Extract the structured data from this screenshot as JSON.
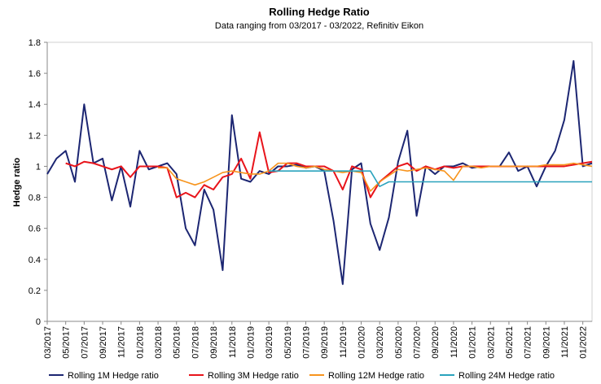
{
  "chart_data": {
    "type": "line",
    "title": "Rolling Hedge Ratio",
    "subtitle": "Data ranging from 03/2017 - 03/2022, Refinitiv Eikon",
    "y_label": "Hedge ratio",
    "categories": [
      "03/2017",
      null,
      "05/2017",
      null,
      "07/2017",
      null,
      "09/2017",
      null,
      "11/2017",
      null,
      "01/2018",
      null,
      "03/2018",
      null,
      "05/2018",
      null,
      "07/2018",
      null,
      "09/2018",
      null,
      "11/2018",
      null,
      "01/2019",
      null,
      "03/2019",
      null,
      "05/2019",
      null,
      "07/2019",
      null,
      "09/2019",
      null,
      "11/2019",
      null,
      "01/2020",
      null,
      "03/2020",
      null,
      "05/2020",
      null,
      "07/2020",
      null,
      "09/2020",
      null,
      "11/2020",
      null,
      "01/2021",
      null,
      "03/2021",
      null,
      "05/2021",
      null,
      "07/2021",
      null,
      "09/2021",
      null,
      "11/2021",
      null,
      "01/2022",
      null
    ],
    "series": [
      {
        "name": "Rolling 1M Hedge ratio",
        "color": "#1c2672",
        "values": [
          0.95,
          1.05,
          1.1,
          0.9,
          1.4,
          1.02,
          1.05,
          0.78,
          1.0,
          0.74,
          1.1,
          0.98,
          1.0,
          1.02,
          0.95,
          0.6,
          0.49,
          0.85,
          0.72,
          0.33,
          1.33,
          0.92,
          0.9,
          0.97,
          0.95,
          1.0,
          1.0,
          1.01,
          0.99,
          1.0,
          0.97,
          0.65,
          0.24,
          0.98,
          1.02,
          0.63,
          0.46,
          0.67,
          1.03,
          1.23,
          0.68,
          1.0,
          0.95,
          1.0,
          1.0,
          1.02,
          0.99,
          1.0,
          1.0,
          1.0,
          1.09,
          0.97,
          1.0,
          0.87,
          1.0,
          1.1,
          1.3,
          1.68,
          1.0,
          1.02
        ]
      },
      {
        "name": "Rolling 3M Hedge ratio",
        "color": "#e8141b",
        "values": [
          null,
          null,
          1.02,
          1.0,
          1.03,
          1.02,
          1.0,
          0.98,
          1.0,
          0.93,
          1.0,
          1.0,
          1.0,
          0.99,
          0.8,
          0.83,
          0.8,
          0.88,
          0.85,
          0.93,
          0.95,
          1.05,
          0.92,
          1.22,
          0.96,
          0.97,
          1.02,
          1.02,
          1.0,
          1.0,
          1.0,
          0.97,
          0.85,
          1.0,
          0.98,
          0.8,
          0.9,
          0.95,
          1.0,
          1.02,
          0.97,
          1.0,
          0.98,
          1.0,
          0.99,
          1.0,
          1.0,
          1.0,
          1.0,
          1.0,
          1.0,
          1.0,
          1.0,
          1.0,
          1.0,
          1.0,
          1.0,
          1.01,
          1.02,
          1.03
        ]
      },
      {
        "name": "Rolling 12M Hedge ratio",
        "color": "#f7941d",
        "values": [
          null,
          null,
          null,
          null,
          null,
          null,
          null,
          null,
          null,
          null,
          null,
          null,
          0.99,
          0.99,
          0.92,
          0.9,
          0.88,
          0.9,
          0.93,
          0.96,
          0.97,
          0.96,
          0.95,
          0.95,
          0.97,
          1.02,
          1.02,
          1.0,
          0.99,
          1.0,
          0.98,
          0.97,
          0.96,
          0.97,
          0.96,
          0.84,
          0.9,
          0.94,
          0.98,
          0.97,
          0.98,
          0.99,
          0.98,
          0.97,
          0.91,
          1.0,
          1.0,
          0.99,
          1.0,
          1.0,
          1.0,
          1.0,
          1.0,
          1.0,
          1.01,
          1.01,
          1.01,
          1.02,
          1.01,
          1.0
        ]
      },
      {
        "name": "Rolling 24M Hedge ratio",
        "color": "#2aa3bd",
        "values": [
          null,
          null,
          null,
          null,
          null,
          null,
          null,
          null,
          null,
          null,
          null,
          null,
          null,
          null,
          null,
          null,
          null,
          null,
          null,
          null,
          null,
          null,
          null,
          null,
          0.97,
          0.97,
          0.97,
          0.97,
          0.97,
          0.97,
          0.97,
          0.97,
          0.97,
          0.97,
          0.97,
          0.97,
          0.87,
          0.9,
          0.9,
          0.9,
          0.9,
          0.9,
          0.9,
          0.9,
          0.9,
          0.9,
          0.9,
          0.9,
          0.9,
          0.9,
          0.9,
          0.9,
          0.9,
          0.9,
          0.9,
          0.9,
          0.9,
          0.9,
          0.9,
          0.9
        ]
      }
    ],
    "ylim": [
      0,
      1.8
    ],
    "yticks": [
      0,
      0.2,
      0.4,
      0.6,
      0.8,
      1,
      1.2,
      1.4,
      1.6,
      1.8
    ]
  }
}
